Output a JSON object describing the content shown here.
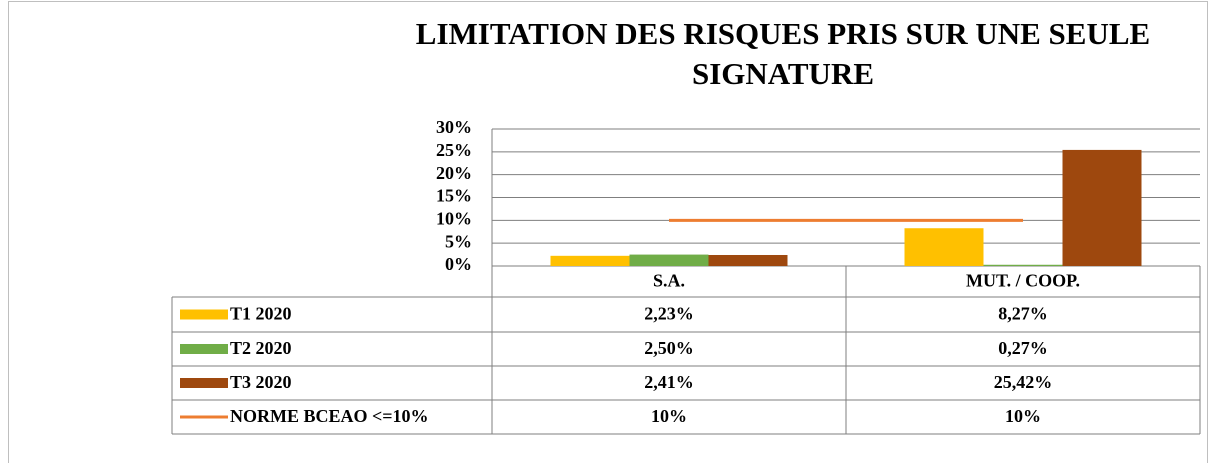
{
  "chart_data": {
    "type": "bar",
    "title": "LIMITATION DES RISQUES PRIS SUR UNE SEULE SIGNATURE",
    "categories": [
      "S.A.",
      "MUT. / COOP."
    ],
    "series": [
      {
        "name": "T1 2020",
        "color": "#FFC000",
        "values": [
          2.23,
          8.27
        ],
        "value_labels": [
          "2,23%",
          "8,27%"
        ]
      },
      {
        "name": "T2 2020",
        "color": "#70AD47",
        "values": [
          2.5,
          0.27
        ],
        "value_labels": [
          "2,50%",
          "0,27%"
        ]
      },
      {
        "name": "T3 2020",
        "color": "#9E480E",
        "values": [
          2.41,
          25.42
        ],
        "value_labels": [
          "2,41%",
          "25,42%"
        ]
      },
      {
        "name": "NORME BCEAO <=10%",
        "type": "line",
        "color": "#ED7D31",
        "values": [
          10,
          10
        ],
        "value_labels": [
          "10%",
          "10%"
        ]
      }
    ],
    "ylim": [
      0,
      30
    ],
    "yticks": [
      {
        "value": 0,
        "label": "0%"
      },
      {
        "value": 5,
        "label": "5%"
      },
      {
        "value": 10,
        "label": "10%"
      },
      {
        "value": 15,
        "label": "15%"
      },
      {
        "value": 20,
        "label": "20%"
      },
      {
        "value": 25,
        "label": "25%"
      },
      {
        "value": 30,
        "label": "30%"
      }
    ],
    "grid": true
  }
}
